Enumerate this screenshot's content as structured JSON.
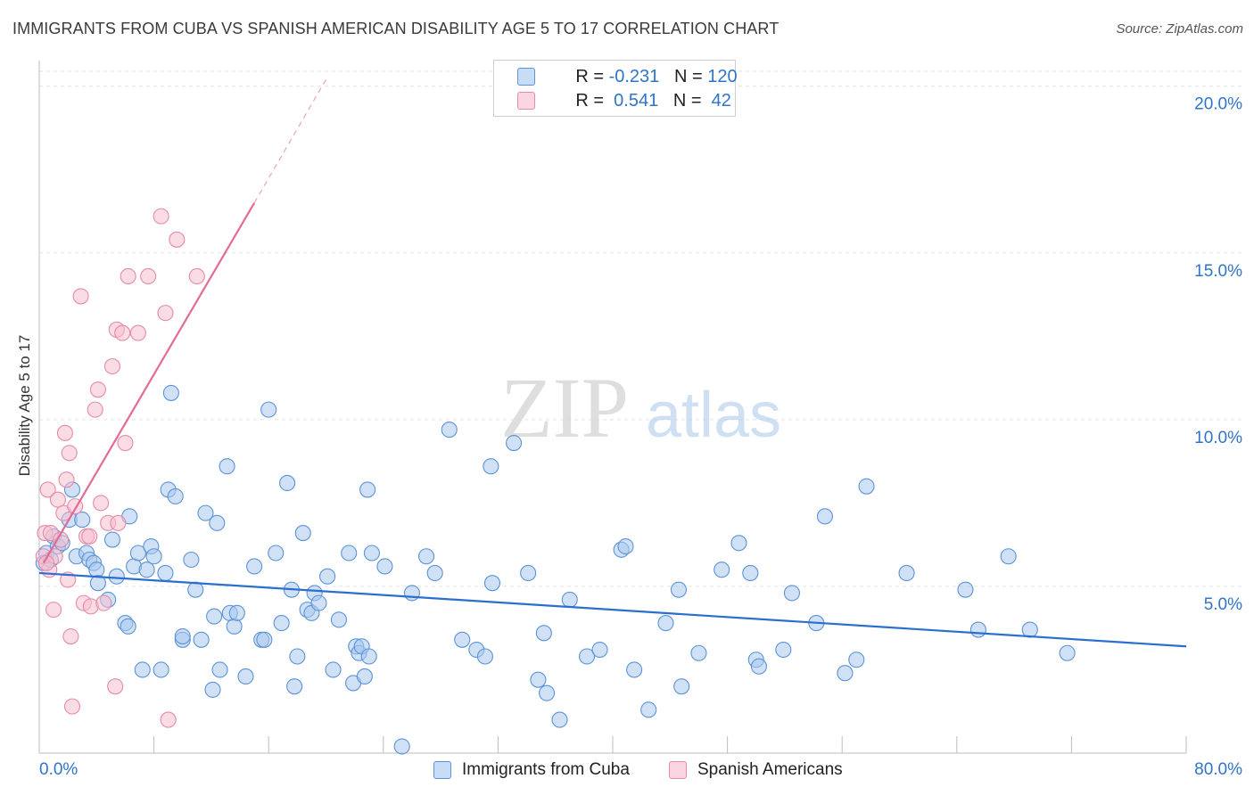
{
  "title": "IMMIGRANTS FROM CUBA VS SPANISH AMERICAN DISABILITY AGE 5 TO 17 CORRELATION CHART",
  "source": "Source: ZipAtlas.com",
  "watermark": {
    "zip": "ZIP",
    "atlas": "atlas"
  },
  "colors": {
    "blue_fill": "#a9c8ee",
    "blue_stroke": "#5b93d8",
    "blue_line": "#2a6fcf",
    "pink_fill": "#f6bfd0",
    "pink_stroke": "#e68aa8",
    "pink_line": "#e26b98",
    "axis_text": "#2f74c8",
    "grid": "#e2e2e2"
  },
  "legend": {
    "rows": [
      {
        "r_label": "R = ",
        "r_value": "-0.231",
        "n_label": "N = ",
        "n_value": "120",
        "series": "blue"
      },
      {
        "r_label": "R = ",
        "r_value": " 0.541",
        "n_label": "N = ",
        "n_value": " 42",
        "series": "pink"
      }
    ]
  },
  "bottom_legend": {
    "blue": "Immigrants from Cuba",
    "pink": "Spanish Americans"
  },
  "chart_data": {
    "type": "scatter",
    "title": "IMMIGRANTS FROM CUBA VS SPANISH AMERICAN DISABILITY AGE 5 TO 17 CORRELATION CHART",
    "xlabel": "",
    "ylabel": "Disability Age 5 to 17",
    "xlim": [
      0,
      80
    ],
    "ylim": [
      0,
      20.5
    ],
    "x_tick_labels": [
      "0.0%",
      "80.0%"
    ],
    "y_ticks": [
      5,
      10,
      15,
      20
    ],
    "y_tick_labels": [
      "5.0%",
      "10.0%",
      "15.0%",
      "20.0%"
    ],
    "grid": true,
    "legend_position": "top-center",
    "series": [
      {
        "name": "Immigrants from Cuba",
        "color": "blue",
        "r": -0.231,
        "n": 120,
        "trend": {
          "x0": 0,
          "y0": 5.4,
          "x1": 80,
          "y1": 3.2
        },
        "points": [
          [
            0.3,
            5.7
          ],
          [
            0.5,
            6.0
          ],
          [
            0.8,
            5.8
          ],
          [
            1.0,
            6.5
          ],
          [
            1.3,
            6.2
          ],
          [
            1.6,
            6.3
          ],
          [
            2.1,
            7.0
          ],
          [
            2.3,
            7.9
          ],
          [
            2.6,
            5.9
          ],
          [
            3.0,
            7.0
          ],
          [
            3.3,
            6.0
          ],
          [
            3.5,
            5.8
          ],
          [
            3.8,
            5.7
          ],
          [
            4.0,
            5.5
          ],
          [
            4.1,
            5.1
          ],
          [
            4.8,
            4.6
          ],
          [
            5.1,
            6.4
          ],
          [
            5.4,
            5.3
          ],
          [
            6.0,
            3.9
          ],
          [
            6.2,
            3.8
          ],
          [
            6.3,
            7.1
          ],
          [
            6.6,
            5.6
          ],
          [
            6.9,
            6.0
          ],
          [
            7.2,
            2.5
          ],
          [
            7.5,
            5.5
          ],
          [
            7.8,
            6.2
          ],
          [
            8.0,
            5.9
          ],
          [
            8.5,
            2.5
          ],
          [
            8.8,
            5.4
          ],
          [
            9.2,
            10.8
          ],
          [
            9.0,
            7.9
          ],
          [
            9.5,
            7.7
          ],
          [
            10.0,
            3.4
          ],
          [
            10.0,
            3.5
          ],
          [
            10.6,
            5.8
          ],
          [
            10.9,
            4.9
          ],
          [
            11.3,
            3.4
          ],
          [
            11.6,
            7.2
          ],
          [
            12.1,
            1.9
          ],
          [
            12.2,
            4.1
          ],
          [
            12.4,
            6.9
          ],
          [
            12.6,
            2.5
          ],
          [
            13.1,
            8.6
          ],
          [
            13.3,
            4.2
          ],
          [
            13.6,
            3.8
          ],
          [
            13.8,
            4.2
          ],
          [
            14.4,
            2.3
          ],
          [
            15.0,
            5.6
          ],
          [
            15.5,
            3.4
          ],
          [
            15.7,
            3.4
          ],
          [
            16.0,
            10.3
          ],
          [
            16.5,
            6.0
          ],
          [
            16.9,
            3.9
          ],
          [
            17.3,
            8.1
          ],
          [
            17.6,
            4.9
          ],
          [
            17.8,
            2.0
          ],
          [
            18.0,
            2.9
          ],
          [
            18.4,
            6.6
          ],
          [
            18.7,
            4.3
          ],
          [
            19.0,
            4.2
          ],
          [
            19.2,
            4.8
          ],
          [
            19.5,
            4.5
          ],
          [
            20.1,
            5.3
          ],
          [
            20.5,
            2.5
          ],
          [
            20.9,
            4.0
          ],
          [
            21.6,
            6.0
          ],
          [
            21.9,
            2.1
          ],
          [
            22.1,
            3.2
          ],
          [
            22.3,
            3.0
          ],
          [
            22.5,
            3.2
          ],
          [
            22.7,
            2.3
          ],
          [
            22.9,
            7.9
          ],
          [
            23.0,
            2.9
          ],
          [
            23.2,
            6.0
          ],
          [
            24.1,
            5.6
          ],
          [
            25.3,
            0.2
          ],
          [
            26.0,
            4.8
          ],
          [
            27.0,
            5.9
          ],
          [
            27.6,
            5.4
          ],
          [
            28.6,
            9.7
          ],
          [
            29.5,
            3.4
          ],
          [
            30.5,
            3.1
          ],
          [
            31.1,
            2.9
          ],
          [
            31.5,
            8.6
          ],
          [
            31.6,
            5.1
          ],
          [
            33.1,
            9.3
          ],
          [
            34.1,
            5.4
          ],
          [
            34.8,
            2.2
          ],
          [
            35.2,
            3.6
          ],
          [
            35.4,
            1.8
          ],
          [
            36.3,
            1.0
          ],
          [
            37.0,
            4.6
          ],
          [
            38.2,
            2.9
          ],
          [
            39.1,
            3.1
          ],
          [
            40.6,
            6.1
          ],
          [
            40.9,
            6.2
          ],
          [
            41.5,
            2.5
          ],
          [
            42.5,
            1.3
          ],
          [
            43.7,
            3.9
          ],
          [
            44.6,
            4.9
          ],
          [
            44.8,
            2.0
          ],
          [
            46.0,
            3.0
          ],
          [
            47.6,
            5.5
          ],
          [
            48.8,
            6.3
          ],
          [
            49.6,
            5.4
          ],
          [
            50.0,
            2.8
          ],
          [
            50.2,
            2.6
          ],
          [
            51.9,
            3.1
          ],
          [
            52.5,
            4.8
          ],
          [
            54.2,
            3.9
          ],
          [
            54.8,
            7.1
          ],
          [
            56.2,
            2.4
          ],
          [
            57.0,
            2.8
          ],
          [
            57.7,
            8.0
          ],
          [
            60.5,
            5.4
          ],
          [
            64.6,
            4.9
          ],
          [
            65.5,
            3.7
          ],
          [
            67.6,
            5.9
          ],
          [
            69.1,
            3.7
          ],
          [
            71.7,
            3.0
          ]
        ]
      },
      {
        "name": "Spanish Americans",
        "color": "pink",
        "r": 0.541,
        "n": 42,
        "trend": {
          "x0": 0.3,
          "y0": 5.7,
          "x1": 15.0,
          "y1": 16.5,
          "dash_x1": 20.0,
          "dash_y1": 20.2
        },
        "points": [
          [
            0.3,
            5.9
          ],
          [
            0.4,
            6.6
          ],
          [
            0.6,
            7.9
          ],
          [
            0.7,
            5.5
          ],
          [
            0.8,
            6.6
          ],
          [
            1.0,
            4.3
          ],
          [
            1.1,
            5.9
          ],
          [
            1.3,
            7.6
          ],
          [
            1.5,
            6.4
          ],
          [
            1.7,
            7.2
          ],
          [
            1.8,
            9.6
          ],
          [
            1.9,
            8.2
          ],
          [
            2.0,
            5.2
          ],
          [
            2.1,
            9.0
          ],
          [
            2.2,
            3.5
          ],
          [
            2.3,
            1.4
          ],
          [
            2.5,
            7.4
          ],
          [
            2.9,
            13.7
          ],
          [
            3.1,
            4.5
          ],
          [
            3.3,
            6.5
          ],
          [
            3.5,
            6.5
          ],
          [
            3.6,
            4.4
          ],
          [
            3.9,
            10.3
          ],
          [
            4.1,
            10.9
          ],
          [
            4.3,
            7.5
          ],
          [
            4.5,
            4.5
          ],
          [
            4.8,
            6.9
          ],
          [
            5.1,
            11.6
          ],
          [
            5.3,
            2.0
          ],
          [
            5.4,
            12.7
          ],
          [
            5.5,
            6.9
          ],
          [
            5.8,
            12.6
          ],
          [
            6.0,
            9.3
          ],
          [
            6.2,
            14.3
          ],
          [
            6.9,
            12.6
          ],
          [
            7.6,
            14.3
          ],
          [
            8.5,
            16.1
          ],
          [
            8.8,
            13.2
          ],
          [
            9.0,
            1.0
          ],
          [
            9.6,
            15.4
          ],
          [
            11.0,
            14.3
          ],
          [
            0.5,
            5.7
          ]
        ]
      }
    ]
  }
}
